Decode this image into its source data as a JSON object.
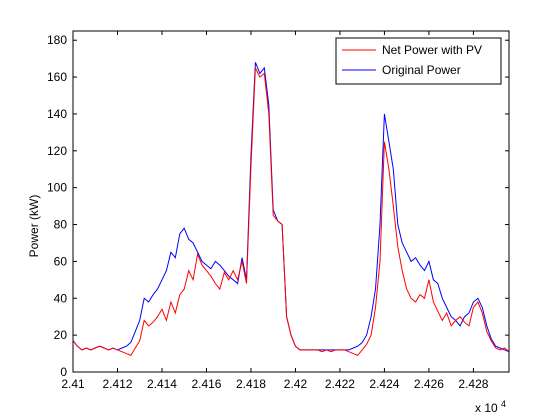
{
  "chart_data": {
    "type": "line",
    "title": "",
    "xlabel": "",
    "ylabel": "Power (kW)",
    "xlim": [
      24100,
      24296
    ],
    "ylim": [
      0,
      185
    ],
    "x_multiplier_label": "x 10",
    "x_multiplier_exponent": "4",
    "xtick_values": [
      24100,
      24120,
      24140,
      24160,
      24180,
      24200,
      24220,
      24240,
      24260,
      24280
    ],
    "xtick_labels": [
      "2.41",
      "2.412",
      "2.414",
      "2.416",
      "2.418",
      "2.42",
      "2.422",
      "2.424",
      "2.426",
      "2.428"
    ],
    "ytick_values": [
      0,
      20,
      40,
      60,
      80,
      100,
      120,
      140,
      160,
      180
    ],
    "ytick_labels": [
      "0",
      "20",
      "40",
      "60",
      "80",
      "100",
      "120",
      "140",
      "160",
      "180"
    ],
    "grid": false,
    "legend_position": "top-right",
    "series": [
      {
        "name": "Net Power with PV",
        "color": "#ff0000",
        "x": [
          24100,
          24102,
          24104,
          24106,
          24108,
          24110,
          24112,
          24114,
          24116,
          24118,
          24120,
          24122,
          24124,
          24126,
          24128,
          24130,
          24132,
          24134,
          24136,
          24138,
          24140,
          24142,
          24144,
          24146,
          24148,
          24150,
          24152,
          24154,
          24156,
          24158,
          24160,
          24162,
          24164,
          24166,
          24168,
          24170,
          24172,
          24174,
          24176,
          24178,
          24180,
          24182,
          24184,
          24186,
          24188,
          24190,
          24192,
          24194,
          24196,
          24198,
          24200,
          24202,
          24204,
          24206,
          24208,
          24210,
          24212,
          24214,
          24216,
          24218,
          24220,
          24222,
          24224,
          24226,
          24228,
          24230,
          24232,
          24234,
          24236,
          24238,
          24240,
          24242,
          24244,
          24246,
          24248,
          24250,
          24252,
          24254,
          24256,
          24258,
          24260,
          24262,
          24264,
          24266,
          24268,
          24270,
          24272,
          24274,
          24276,
          24278,
          24280,
          24282,
          24284,
          24286,
          24288,
          24290,
          24292,
          24294,
          24296
        ],
        "y": [
          17,
          14,
          12,
          13,
          12,
          13,
          14,
          13,
          12,
          13,
          12,
          11,
          10,
          9,
          13,
          17,
          28,
          25,
          27,
          30,
          34,
          28,
          38,
          32,
          42,
          45,
          55,
          50,
          64,
          58,
          55,
          52,
          48,
          45,
          54,
          50,
          55,
          50,
          60,
          48,
          112,
          165,
          160,
          162,
          140,
          85,
          82,
          80,
          30,
          20,
          14,
          12,
          12,
          12,
          12,
          12,
          11,
          12,
          11,
          12,
          12,
          12,
          11,
          10,
          9,
          12,
          15,
          20,
          35,
          60,
          125,
          110,
          90,
          68,
          55,
          45,
          40,
          38,
          42,
          40,
          50,
          38,
          33,
          28,
          32,
          25,
          28,
          30,
          27,
          25,
          35,
          38,
          32,
          22,
          17,
          13,
          12,
          13,
          11
        ]
      },
      {
        "name": "Original Power",
        "color": "#0000ff",
        "x": [
          24100,
          24102,
          24104,
          24106,
          24108,
          24110,
          24112,
          24114,
          24116,
          24118,
          24120,
          24122,
          24124,
          24126,
          24128,
          24130,
          24132,
          24134,
          24136,
          24138,
          24140,
          24142,
          24144,
          24146,
          24148,
          24150,
          24152,
          24154,
          24156,
          24158,
          24160,
          24162,
          24164,
          24166,
          24168,
          24170,
          24172,
          24174,
          24176,
          24178,
          24180,
          24182,
          24184,
          24186,
          24188,
          24190,
          24192,
          24194,
          24196,
          24198,
          24200,
          24202,
          24204,
          24206,
          24208,
          24210,
          24212,
          24214,
          24216,
          24218,
          24220,
          24222,
          24224,
          24226,
          24228,
          24230,
          24232,
          24234,
          24236,
          24238,
          24240,
          24242,
          24244,
          24246,
          24248,
          24250,
          24252,
          24254,
          24256,
          24258,
          24260,
          24262,
          24264,
          24266,
          24268,
          24270,
          24272,
          24274,
          24276,
          24278,
          24280,
          24282,
          24284,
          24286,
          24288,
          24290,
          24292,
          24294,
          24296
        ],
        "y": [
          17,
          14,
          12,
          13,
          12,
          13,
          14,
          13,
          12,
          13,
          12,
          13,
          14,
          16,
          22,
          28,
          40,
          38,
          42,
          45,
          50,
          55,
          65,
          62,
          75,
          78,
          72,
          70,
          65,
          60,
          58,
          56,
          60,
          58,
          55,
          52,
          50,
          48,
          62,
          50,
          118,
          168,
          162,
          165,
          145,
          88,
          82,
          80,
          30,
          20,
          14,
          12,
          12,
          12,
          12,
          12,
          12,
          12,
          12,
          12,
          12,
          12,
          12,
          13,
          14,
          16,
          20,
          30,
          45,
          80,
          140,
          125,
          110,
          80,
          70,
          65,
          60,
          62,
          58,
          55,
          60,
          50,
          48,
          40,
          35,
          30,
          28,
          25,
          30,
          32,
          38,
          40,
          35,
          25,
          18,
          14,
          13,
          12,
          11
        ]
      }
    ]
  }
}
